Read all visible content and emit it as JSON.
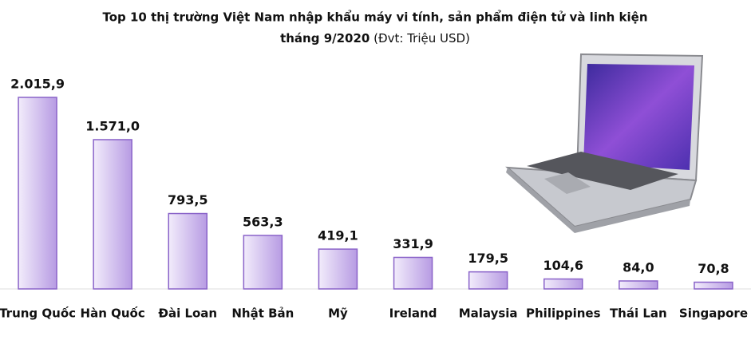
{
  "chart_data": {
    "type": "bar",
    "title": "Top 10 thị trường Việt Nam nhập khẩu máy vi tính, sản phẩm điện tử và linh kiện",
    "title_line2": "tháng 9/2020",
    "subtitle": "(Đvt: Triệu USD)",
    "categories": [
      "Trung Quốc",
      "Hàn Quốc",
      "Đài Loan",
      "Nhật Bản",
      "Mỹ",
      "Ireland",
      "Malaysia",
      "Philippines",
      "Thái Lan",
      "Singapore"
    ],
    "values": [
      2015.9,
      1571.0,
      793.5,
      563.3,
      419.1,
      331.9,
      179.5,
      104.6,
      84.0,
      70.8
    ],
    "value_labels": [
      "2.015,9",
      "1.571,0",
      "793,5",
      "563,3",
      "419,1",
      "331,9",
      "179,5",
      "104,6",
      "84,0",
      "70,8"
    ],
    "color": "#8a63c9"
  }
}
